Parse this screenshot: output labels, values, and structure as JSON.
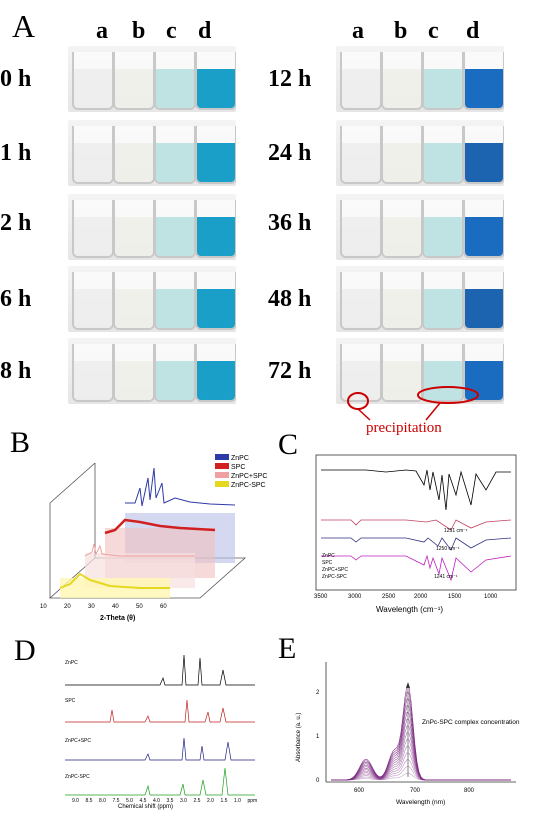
{
  "panel_a": {
    "letter": "A",
    "columns": [
      "a",
      "b",
      "c",
      "d"
    ],
    "times_left": [
      "0 h",
      "1 h",
      "2 h",
      "6 h",
      "8 h"
    ],
    "times_right": [
      "12 h",
      "24 h",
      "36 h",
      "48 h",
      "72 h"
    ],
    "annotation": "precipitation"
  },
  "panel_b": {
    "letter": "B",
    "legend": [
      "ZnPC",
      "SPC",
      "ZnPC+SPC",
      "ZnPC-SPC"
    ],
    "colors": [
      "#2e3aa8",
      "#d02020",
      "#f0a0a0",
      "#e6d820"
    ],
    "xlabel": "2-Theta (θ)",
    "ticks": [
      "10",
      "20",
      "30",
      "40",
      "50",
      "60"
    ]
  },
  "panel_c": {
    "letter": "C",
    "legend": [
      "ZnPC",
      "SPC",
      "ZnPC+SPC",
      "ZnPC-SPC"
    ],
    "colors": [
      "#000000",
      "#c04060",
      "#303080",
      "#c020c0"
    ],
    "peaks": [
      "1251 cm⁻¹",
      "1250 cm⁻¹",
      "1241 cm⁻¹"
    ],
    "xlabel": "Wavelength (cm⁻¹)",
    "ticks": [
      "3500",
      "3000",
      "2500",
      "2000",
      "1500",
      "1000"
    ]
  },
  "panel_d": {
    "letter": "D",
    "labels": [
      "ZnPC",
      "SPC",
      "ZnPC+SPC",
      "ZnPC-SPC"
    ],
    "colors": [
      "#000000",
      "#c02020",
      "#202080",
      "#20a020"
    ],
    "xlabel": "Chemical shift (ppm)",
    "ticks": [
      "9.0",
      "8.5",
      "8.0",
      "7.5",
      "5.0",
      "4.5",
      "4.0",
      "3.5",
      "3.0",
      "2.5",
      "2.0",
      "1.5",
      "1.0",
      "ppm"
    ]
  },
  "panel_e": {
    "letter": "E",
    "ylabel": "Absorbance (a. u.)",
    "xlabel": "Wavelength (nm)",
    "annotation": "ZnPc-SPC complex concentration",
    "yticks": [
      "0",
      "1",
      "2"
    ],
    "xticks": [
      "600",
      "700",
      "800"
    ],
    "color": "#7a2a80"
  }
}
